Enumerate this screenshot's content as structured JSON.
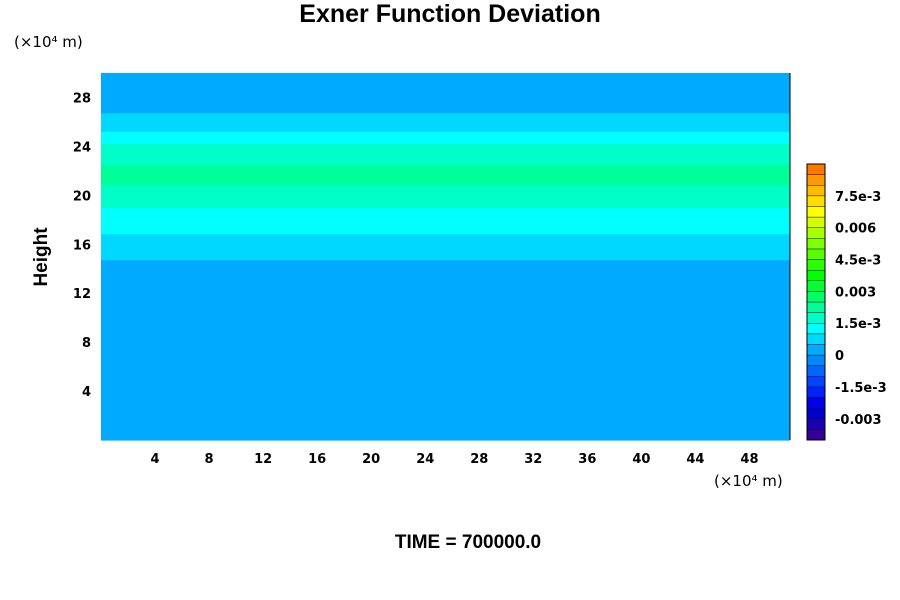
{
  "chart_data": {
    "type": "heatmap",
    "title": "Exner Function Deviation",
    "xlabel": "",
    "ylabel": "Height",
    "x_unit": "(×10⁴ m)",
    "y_unit": "(×10⁴ m)",
    "xlim": [
      0,
      51
    ],
    "ylim": [
      0,
      30
    ],
    "x_ticks": [
      4,
      8,
      12,
      16,
      20,
      24,
      28,
      32,
      36,
      40,
      44,
      48
    ],
    "y_ticks": [
      4,
      8,
      12,
      16,
      20,
      24,
      28
    ],
    "grid": false,
    "colorbar": {
      "min": -0.004,
      "max": 0.009,
      "step": 0.0005,
      "ticks": [
        {
          "value": 0.0075,
          "label": "7.5e-3"
        },
        {
          "value": 0.006,
          "label": "0.006"
        },
        {
          "value": 0.0045,
          "label": "4.5e-3"
        },
        {
          "value": 0.003,
          "label": "0.003"
        },
        {
          "value": 0.0015,
          "label": "1.5e-3"
        },
        {
          "value": 0,
          "label": "0"
        },
        {
          "value": -0.0015,
          "label": "-1.5e-3"
        },
        {
          "value": -0.003,
          "label": "-0.003"
        }
      ],
      "colors": [
        "#330099",
        "#1a00b3",
        "#0000cc",
        "#0000e6",
        "#0022ff",
        "#0044ff",
        "#0066ff",
        "#0088ff",
        "#00aaff",
        "#00d8ff",
        "#00ffff",
        "#00ffc8",
        "#00ff99",
        "#00ff66",
        "#00ff33",
        "#00ff00",
        "#2bff00",
        "#55ff00",
        "#80ff00",
        "#aaff00",
        "#d4ff00",
        "#ffff00",
        "#ffdd00",
        "#ffbb00",
        "#ff9900",
        "#ff7700",
        "#ff5500",
        "#ff3300",
        "#ff0000",
        "#ff3a3a",
        "#ff6666",
        "#ff8f8f"
      ]
    },
    "profile": {
      "description_note": "field is horizontally uniform; values vary with height (data units ×10⁴ m)",
      "height": [
        0,
        13.5,
        15.5,
        17.8,
        19.7,
        21.7,
        23.8,
        25.9,
        28.0,
        30
      ],
      "value": [
        0.0002,
        0.0002,
        0.0007,
        0.0012,
        0.0017,
        0.0022,
        0.0017,
        0.0007,
        0.0002,
        0.0002
      ]
    }
  },
  "timestamp": "TIME = 700000.0"
}
